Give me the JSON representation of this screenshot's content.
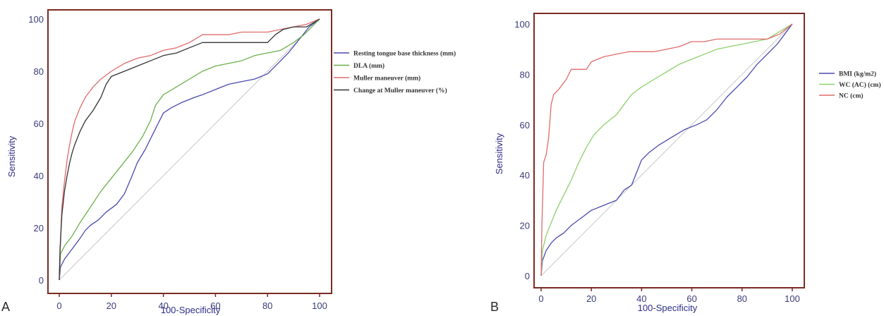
{
  "chart_data": [
    {
      "type": "line",
      "panel": "A",
      "xlabel": "100-Specificity",
      "ylabel": "Sensitivity",
      "xlim": [
        0,
        100
      ],
      "ylim": [
        0,
        100
      ],
      "xticks": [
        "0",
        "20",
        "40",
        "60",
        "80",
        "100"
      ],
      "yticks": [
        "0",
        "20",
        "40",
        "60",
        "80",
        "100"
      ],
      "legend_position": "right-outside",
      "reference_line": "diagonal",
      "series": [
        {
          "name": "Resting tongue base thickness (mm)",
          "color": "#4a4ab0",
          "points": [
            [
              0,
              0
            ],
            [
              0.5,
              5
            ],
            [
              2,
              8
            ],
            [
              5,
              12
            ],
            [
              8,
              16
            ],
            [
              10,
              19
            ],
            [
              12,
              21
            ],
            [
              15,
              23
            ],
            [
              18,
              26
            ],
            [
              22,
              29
            ],
            [
              25,
              33
            ],
            [
              28,
              40
            ],
            [
              30,
              45
            ],
            [
              33,
              50
            ],
            [
              36,
              56
            ],
            [
              38,
              60
            ],
            [
              40,
              64
            ],
            [
              43,
              66
            ],
            [
              47,
              68
            ],
            [
              52,
              70
            ],
            [
              55,
              71
            ],
            [
              60,
              73
            ],
            [
              65,
              75
            ],
            [
              70,
              76
            ],
            [
              75,
              77
            ],
            [
              80,
              79
            ],
            [
              84,
              83
            ],
            [
              88,
              87
            ],
            [
              92,
              92
            ],
            [
              96,
              97
            ],
            [
              100,
              100
            ]
          ]
        },
        {
          "name": "DLA (mm)",
          "color": "#6ab04c",
          "points": [
            [
              0,
              0
            ],
            [
              0.5,
              10
            ],
            [
              2,
              13
            ],
            [
              5,
              17
            ],
            [
              8,
              22
            ],
            [
              12,
              28
            ],
            [
              16,
              34
            ],
            [
              20,
              39
            ],
            [
              24,
              44
            ],
            [
              28,
              49
            ],
            [
              32,
              55
            ],
            [
              35,
              61
            ],
            [
              37,
              67
            ],
            [
              40,
              71
            ],
            [
              45,
              74
            ],
            [
              50,
              77
            ],
            [
              55,
              80
            ],
            [
              60,
              82
            ],
            [
              65,
              83
            ],
            [
              70,
              84
            ],
            [
              75,
              86
            ],
            [
              80,
              87
            ],
            [
              85,
              88
            ],
            [
              90,
              91
            ],
            [
              94,
              94
            ],
            [
              97,
              97
            ],
            [
              100,
              100
            ]
          ]
        },
        {
          "name": "Muller maneuver  (mm)",
          "color": "#e06b6b",
          "points": [
            [
              0,
              0
            ],
            [
              0.3,
              10
            ],
            [
              1,
              28
            ],
            [
              2,
              38
            ],
            [
              3,
              46
            ],
            [
              4,
              52
            ],
            [
              5,
              57
            ],
            [
              6,
              61
            ],
            [
              8,
              66
            ],
            [
              10,
              70
            ],
            [
              13,
              74
            ],
            [
              16,
              77
            ],
            [
              20,
              80
            ],
            [
              25,
              83
            ],
            [
              30,
              85
            ],
            [
              35,
              86
            ],
            [
              40,
              88
            ],
            [
              45,
              89
            ],
            [
              50,
              91
            ],
            [
              55,
              94
            ],
            [
              60,
              94
            ],
            [
              65,
              94
            ],
            [
              70,
              95
            ],
            [
              75,
              95
            ],
            [
              80,
              95
            ],
            [
              85,
              96
            ],
            [
              90,
              97
            ],
            [
              95,
              98
            ],
            [
              100,
              100
            ]
          ]
        },
        {
          "name": "Change at Muller maneuver (%)",
          "color": "#333333",
          "points": [
            [
              0,
              0
            ],
            [
              0.3,
              12
            ],
            [
              1,
              25
            ],
            [
              2,
              34
            ],
            [
              3,
              40
            ],
            [
              4,
              45
            ],
            [
              5,
              49
            ],
            [
              6,
              52
            ],
            [
              8,
              57
            ],
            [
              10,
              61
            ],
            [
              13,
              65
            ],
            [
              16,
              70
            ],
            [
              18,
              75
            ],
            [
              20,
              78
            ],
            [
              25,
              80
            ],
            [
              30,
              82
            ],
            [
              35,
              84
            ],
            [
              40,
              86
            ],
            [
              45,
              87
            ],
            [
              50,
              89
            ],
            [
              55,
              91
            ],
            [
              60,
              91
            ],
            [
              65,
              91
            ],
            [
              70,
              91
            ],
            [
              75,
              91
            ],
            [
              80,
              91
            ],
            [
              83,
              94
            ],
            [
              86,
              96
            ],
            [
              90,
              97
            ],
            [
              95,
              97
            ],
            [
              100,
              100
            ]
          ]
        }
      ]
    },
    {
      "type": "line",
      "panel": "B",
      "xlabel": "100-Specificity",
      "ylabel": "Sensitivity",
      "xlim": [
        0,
        100
      ],
      "ylim": [
        0,
        100
      ],
      "xticks": [
        "0",
        "20",
        "40",
        "60",
        "80",
        "100"
      ],
      "yticks": [
        "0",
        "20",
        "40",
        "60",
        "80",
        "100"
      ],
      "legend_position": "right-outside",
      "reference_line": "diagonal",
      "series": [
        {
          "name": "BMI (kg/m2)",
          "color": "#4a4ab0",
          "points": [
            [
              0,
              0
            ],
            [
              0.5,
              6
            ],
            [
              2,
              10
            ],
            [
              4,
              13
            ],
            [
              6,
              15
            ],
            [
              9,
              17
            ],
            [
              12,
              20
            ],
            [
              16,
              23
            ],
            [
              20,
              26
            ],
            [
              25,
              28
            ],
            [
              30,
              30
            ],
            [
              33,
              34
            ],
            [
              36,
              36
            ],
            [
              38,
              41
            ],
            [
              40,
              46
            ],
            [
              43,
              49
            ],
            [
              47,
              52
            ],
            [
              52,
              55
            ],
            [
              57,
              58
            ],
            [
              62,
              60
            ],
            [
              66,
              62
            ],
            [
              70,
              66
            ],
            [
              74,
              71
            ],
            [
              78,
              75
            ],
            [
              82,
              79
            ],
            [
              86,
              84
            ],
            [
              90,
              88
            ],
            [
              94,
              92
            ],
            [
              97,
              96
            ],
            [
              100,
              100
            ]
          ]
        },
        {
          "name": "WC (AC) (cm)",
          "color": "#8cd06a",
          "points": [
            [
              0,
              0
            ],
            [
              0.5,
              10
            ],
            [
              2,
              16
            ],
            [
              4,
              21
            ],
            [
              6,
              26
            ],
            [
              9,
              32
            ],
            [
              12,
              38
            ],
            [
              15,
              45
            ],
            [
              18,
              51
            ],
            [
              21,
              56
            ],
            [
              25,
              60
            ],
            [
              30,
              64
            ],
            [
              33,
              68
            ],
            [
              36,
              72
            ],
            [
              40,
              75
            ],
            [
              45,
              78
            ],
            [
              50,
              81
            ],
            [
              55,
              84
            ],
            [
              60,
              86
            ],
            [
              65,
              88
            ],
            [
              70,
              90
            ],
            [
              75,
              91
            ],
            [
              80,
              92
            ],
            [
              85,
              93
            ],
            [
              90,
              94
            ],
            [
              95,
              97
            ],
            [
              100,
              100
            ]
          ]
        },
        {
          "name": "NC (cm)",
          "color": "#e06b6b",
          "points": [
            [
              0,
              0
            ],
            [
              0.3,
              20
            ],
            [
              1,
              45
            ],
            [
              2,
              48
            ],
            [
              3,
              55
            ],
            [
              4,
              68
            ],
            [
              5,
              72
            ],
            [
              7,
              74
            ],
            [
              10,
              78
            ],
            [
              12,
              82
            ],
            [
              15,
              82
            ],
            [
              18,
              82
            ],
            [
              20,
              85
            ],
            [
              25,
              87
            ],
            [
              30,
              88
            ],
            [
              35,
              89
            ],
            [
              40,
              89
            ],
            [
              45,
              89
            ],
            [
              50,
              90
            ],
            [
              55,
              91
            ],
            [
              60,
              93
            ],
            [
              65,
              93
            ],
            [
              70,
              94
            ],
            [
              75,
              94
            ],
            [
              80,
              94
            ],
            [
              85,
              94
            ],
            [
              90,
              94
            ],
            [
              95,
              96
            ],
            [
              100,
              100
            ]
          ]
        }
      ]
    }
  ]
}
